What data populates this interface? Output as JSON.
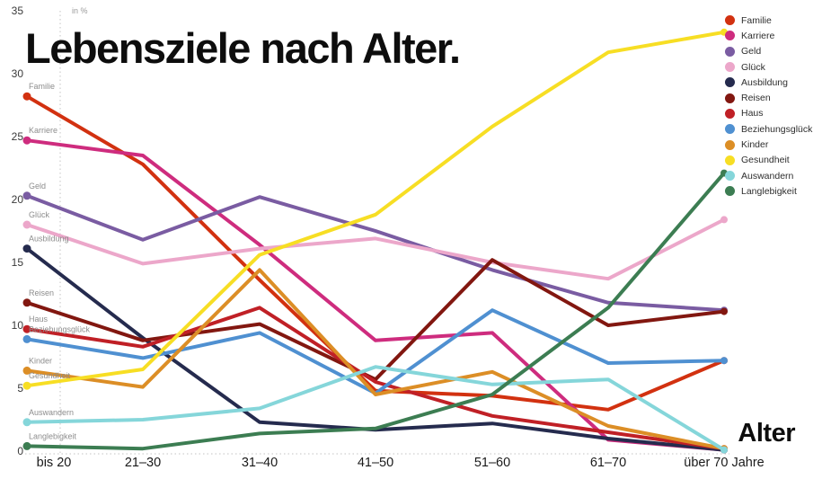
{
  "page": {
    "title": "Lebensziele nach Alter.",
    "x_axis_title": "Alter",
    "y_axis_unit_label": "in %"
  },
  "chart_data": {
    "type": "line",
    "title": "Lebensziele nach Alter.",
    "xlabel": "Alter",
    "ylabel": "in %",
    "ylim": [
      0,
      35
    ],
    "y_ticks": [
      0,
      5,
      10,
      15,
      20,
      25,
      30,
      35
    ],
    "grid": "dotted left axis and dotted baseline only",
    "legend_position": "top-right",
    "line_start_labels": true,
    "categories": [
      "bis 20",
      "21–30",
      "31–40",
      "41–50",
      "51–60",
      "61–70",
      "über 70 Jahre"
    ],
    "series": [
      {
        "name": "Familie",
        "color": "#d23110",
        "values": [
          28.2,
          22.8,
          13.6,
          4.8,
          4.4,
          3.3,
          7.2
        ]
      },
      {
        "name": "Karriere",
        "color": "#ce2c7e",
        "values": [
          24.7,
          23.5,
          16.4,
          8.8,
          9.4,
          0.9,
          0.1
        ]
      },
      {
        "name": "Geld",
        "color": "#7a5ca2",
        "values": [
          20.3,
          16.8,
          20.2,
          17.5,
          14.4,
          11.8,
          11.2
        ]
      },
      {
        "name": "Glück",
        "color": "#eca7ca",
        "values": [
          18.0,
          14.9,
          16.1,
          16.9,
          15.0,
          13.7,
          18.4
        ]
      },
      {
        "name": "Ausbildung",
        "color": "#252b4e",
        "values": [
          16.1,
          9.0,
          2.3,
          1.7,
          2.2,
          1.0,
          0.1
        ]
      },
      {
        "name": "Reisen",
        "color": "#821710",
        "values": [
          11.8,
          8.8,
          10.1,
          5.7,
          15.2,
          10.0,
          11.1
        ]
      },
      {
        "name": "Haus",
        "color": "#c02026",
        "values": [
          9.7,
          8.3,
          11.4,
          5.5,
          2.8,
          1.5,
          0.2
        ]
      },
      {
        "name": "Beziehungsglück",
        "color": "#4f90d1",
        "values": [
          8.9,
          7.4,
          9.4,
          4.6,
          11.2,
          7.0,
          7.2
        ]
      },
      {
        "name": "Kinder",
        "color": "#dc8e26",
        "values": [
          6.4,
          5.1,
          14.4,
          4.5,
          6.3,
          2.0,
          0.2
        ]
      },
      {
        "name": "Gesundheit",
        "color": "#f7de24",
        "values": [
          5.2,
          6.5,
          15.6,
          18.8,
          25.8,
          31.7,
          33.3
        ]
      },
      {
        "name": "Auswandern",
        "color": "#85d6da",
        "values": [
          2.3,
          2.5,
          3.4,
          6.7,
          5.3,
          5.7,
          0.1
        ]
      },
      {
        "name": "Langlebigkeit",
        "color": "#3c7d52",
        "values": [
          0.4,
          0.2,
          1.4,
          1.8,
          4.5,
          11.4,
          22.1
        ]
      }
    ]
  }
}
